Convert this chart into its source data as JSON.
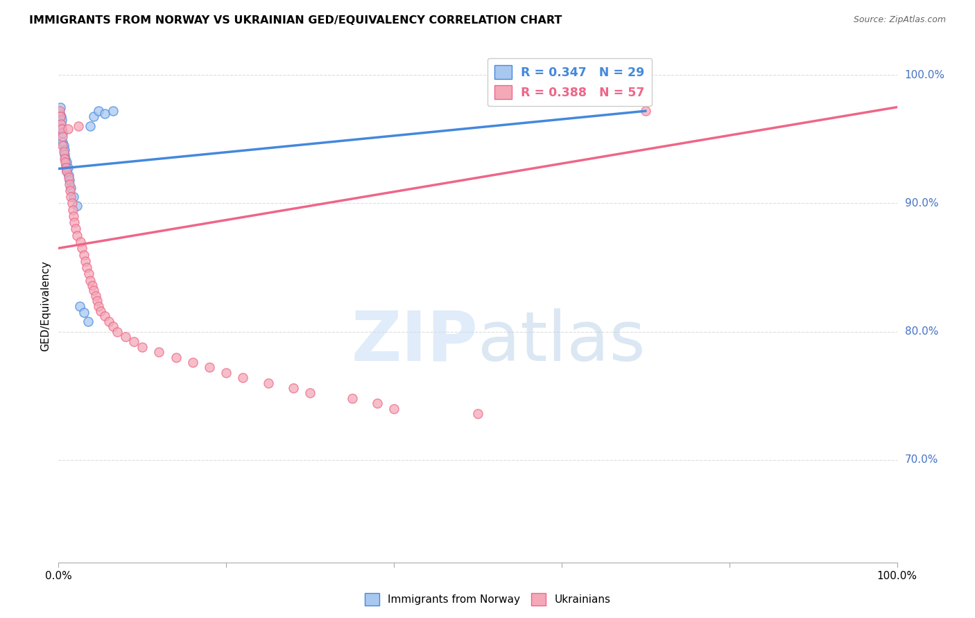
{
  "title": "IMMIGRANTS FROM NORWAY VS UKRAINIAN GED/EQUIVALENCY CORRELATION CHART",
  "source": "Source: ZipAtlas.com",
  "ylabel": "GED/Equivalency",
  "legend_norway_r": "R = 0.347",
  "legend_norway_n": "N = 29",
  "legend_ukraine_r": "R = 0.388",
  "legend_ukraine_n": "N = 57",
  "norway_color": "#a8c8f0",
  "ukraine_color": "#f4a8b8",
  "norway_line_color": "#4488dd",
  "ukraine_line_color": "#ee6688",
  "norway_points": [
    [
      0.001,
      0.97
    ],
    [
      0.002,
      0.975
    ],
    [
      0.003,
      0.968
    ],
    [
      0.003,
      0.962
    ],
    [
      0.004,
      0.958
    ],
    [
      0.004,
      0.965
    ],
    [
      0.005,
      0.955
    ],
    [
      0.005,
      0.948
    ],
    [
      0.006,
      0.945
    ],
    [
      0.007,
      0.942
    ],
    [
      0.007,
      0.938
    ],
    [
      0.008,
      0.935
    ],
    [
      0.009,
      0.93
    ],
    [
      0.01,
      0.925
    ],
    [
      0.01,
      0.932
    ],
    [
      0.011,
      0.928
    ],
    [
      0.012,
      0.922
    ],
    [
      0.013,
      0.918
    ],
    [
      0.015,
      0.912
    ],
    [
      0.018,
      0.905
    ],
    [
      0.022,
      0.898
    ],
    [
      0.025,
      0.82
    ],
    [
      0.03,
      0.815
    ],
    [
      0.035,
      0.808
    ],
    [
      0.038,
      0.96
    ],
    [
      0.042,
      0.968
    ],
    [
      0.048,
      0.972
    ],
    [
      0.055,
      0.97
    ],
    [
      0.065,
      0.972
    ]
  ],
  "ukraine_points": [
    [
      0.001,
      0.972
    ],
    [
      0.002,
      0.968
    ],
    [
      0.003,
      0.962
    ],
    [
      0.004,
      0.958
    ],
    [
      0.005,
      0.952
    ],
    [
      0.005,
      0.945
    ],
    [
      0.006,
      0.94
    ],
    [
      0.007,
      0.935
    ],
    [
      0.008,
      0.932
    ],
    [
      0.009,
      0.928
    ],
    [
      0.01,
      0.925
    ],
    [
      0.011,
      0.958
    ],
    [
      0.012,
      0.92
    ],
    [
      0.013,
      0.915
    ],
    [
      0.014,
      0.91
    ],
    [
      0.015,
      0.905
    ],
    [
      0.016,
      0.9
    ],
    [
      0.017,
      0.895
    ],
    [
      0.018,
      0.89
    ],
    [
      0.019,
      0.885
    ],
    [
      0.02,
      0.88
    ],
    [
      0.022,
      0.875
    ],
    [
      0.024,
      0.96
    ],
    [
      0.026,
      0.87
    ],
    [
      0.028,
      0.865
    ],
    [
      0.03,
      0.86
    ],
    [
      0.032,
      0.855
    ],
    [
      0.034,
      0.85
    ],
    [
      0.036,
      0.845
    ],
    [
      0.038,
      0.84
    ],
    [
      0.04,
      0.836
    ],
    [
      0.042,
      0.832
    ],
    [
      0.044,
      0.828
    ],
    [
      0.046,
      0.824
    ],
    [
      0.048,
      0.82
    ],
    [
      0.05,
      0.816
    ],
    [
      0.055,
      0.812
    ],
    [
      0.06,
      0.808
    ],
    [
      0.065,
      0.804
    ],
    [
      0.07,
      0.8
    ],
    [
      0.08,
      0.796
    ],
    [
      0.09,
      0.792
    ],
    [
      0.1,
      0.788
    ],
    [
      0.12,
      0.784
    ],
    [
      0.14,
      0.78
    ],
    [
      0.16,
      0.776
    ],
    [
      0.18,
      0.772
    ],
    [
      0.2,
      0.768
    ],
    [
      0.22,
      0.764
    ],
    [
      0.25,
      0.76
    ],
    [
      0.28,
      0.756
    ],
    [
      0.3,
      0.752
    ],
    [
      0.35,
      0.748
    ],
    [
      0.38,
      0.744
    ],
    [
      0.4,
      0.74
    ],
    [
      0.5,
      0.736
    ],
    [
      0.7,
      0.972
    ]
  ],
  "xlim": [
    0.0,
    1.0
  ],
  "ylim": [
    0.62,
    1.02
  ],
  "background_color": "#ffffff",
  "grid_color": "#dddddd"
}
